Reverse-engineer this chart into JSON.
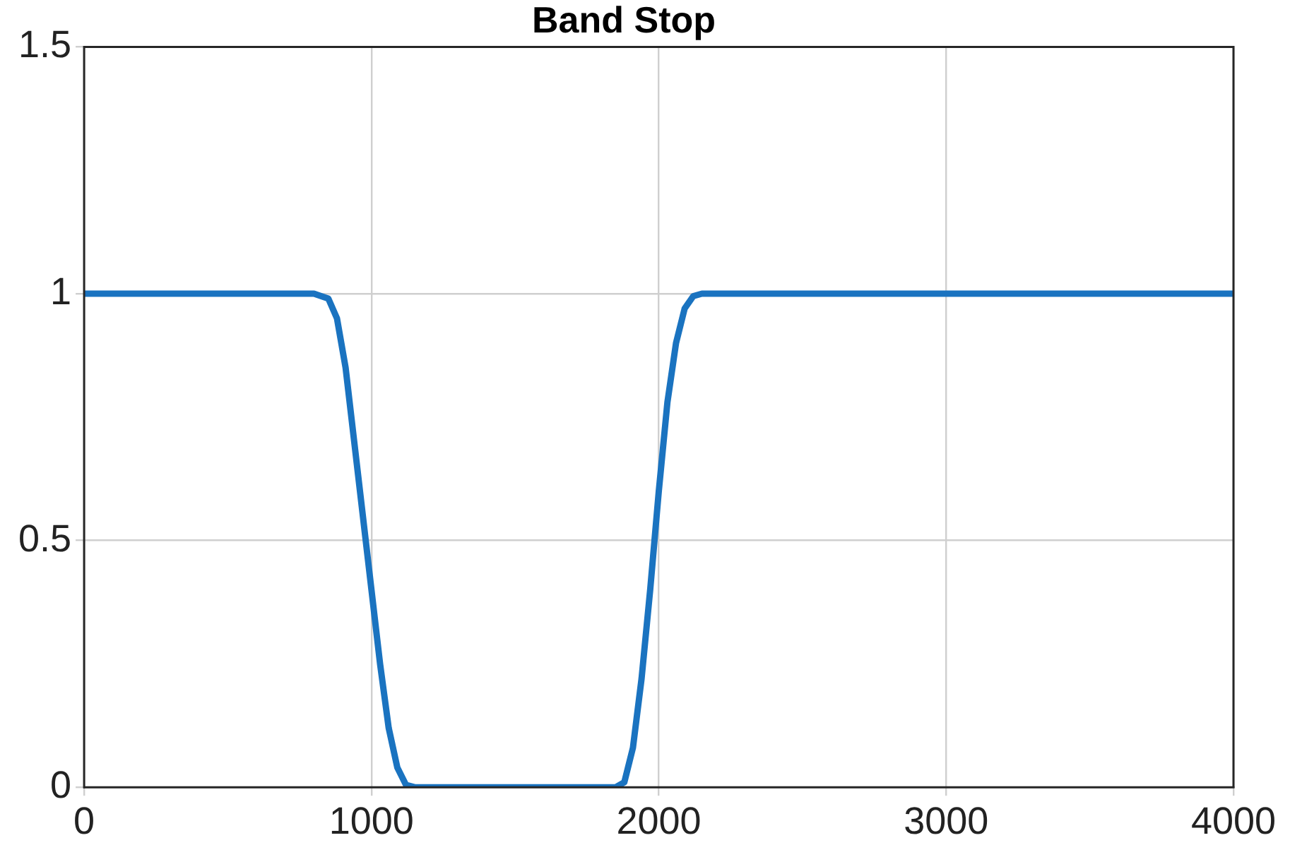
{
  "chart_data": {
    "type": "line",
    "title": "Band Stop",
    "x": [
      0,
      400,
      800,
      850,
      880,
      910,
      940,
      970,
      1000,
      1030,
      1060,
      1090,
      1120,
      1150,
      1500,
      1850,
      1880,
      1910,
      1940,
      1970,
      2000,
      2030,
      2060,
      2090,
      2120,
      2150,
      2600,
      3000,
      3500,
      4000
    ],
    "series": [
      {
        "color": "#1a73c0",
        "values": [
          1,
          1,
          1,
          0.99,
          0.95,
          0.85,
          0.7,
          0.55,
          0.4,
          0.25,
          0.12,
          0.04,
          0.005,
          0,
          0,
          0,
          0.01,
          0.08,
          0.22,
          0.4,
          0.6,
          0.78,
          0.9,
          0.97,
          0.995,
          1,
          1,
          1,
          1,
          1
        ]
      }
    ],
    "xlim": [
      0,
      4000
    ],
    "xticks": [
      0,
      1000,
      2000,
      3000,
      4000
    ],
    "ylim": [
      0,
      1.5
    ],
    "yticks": [
      0,
      0.5,
      1,
      1.5
    ],
    "grid": true,
    "legend": false,
    "marker": "none",
    "line_style": "solid"
  }
}
